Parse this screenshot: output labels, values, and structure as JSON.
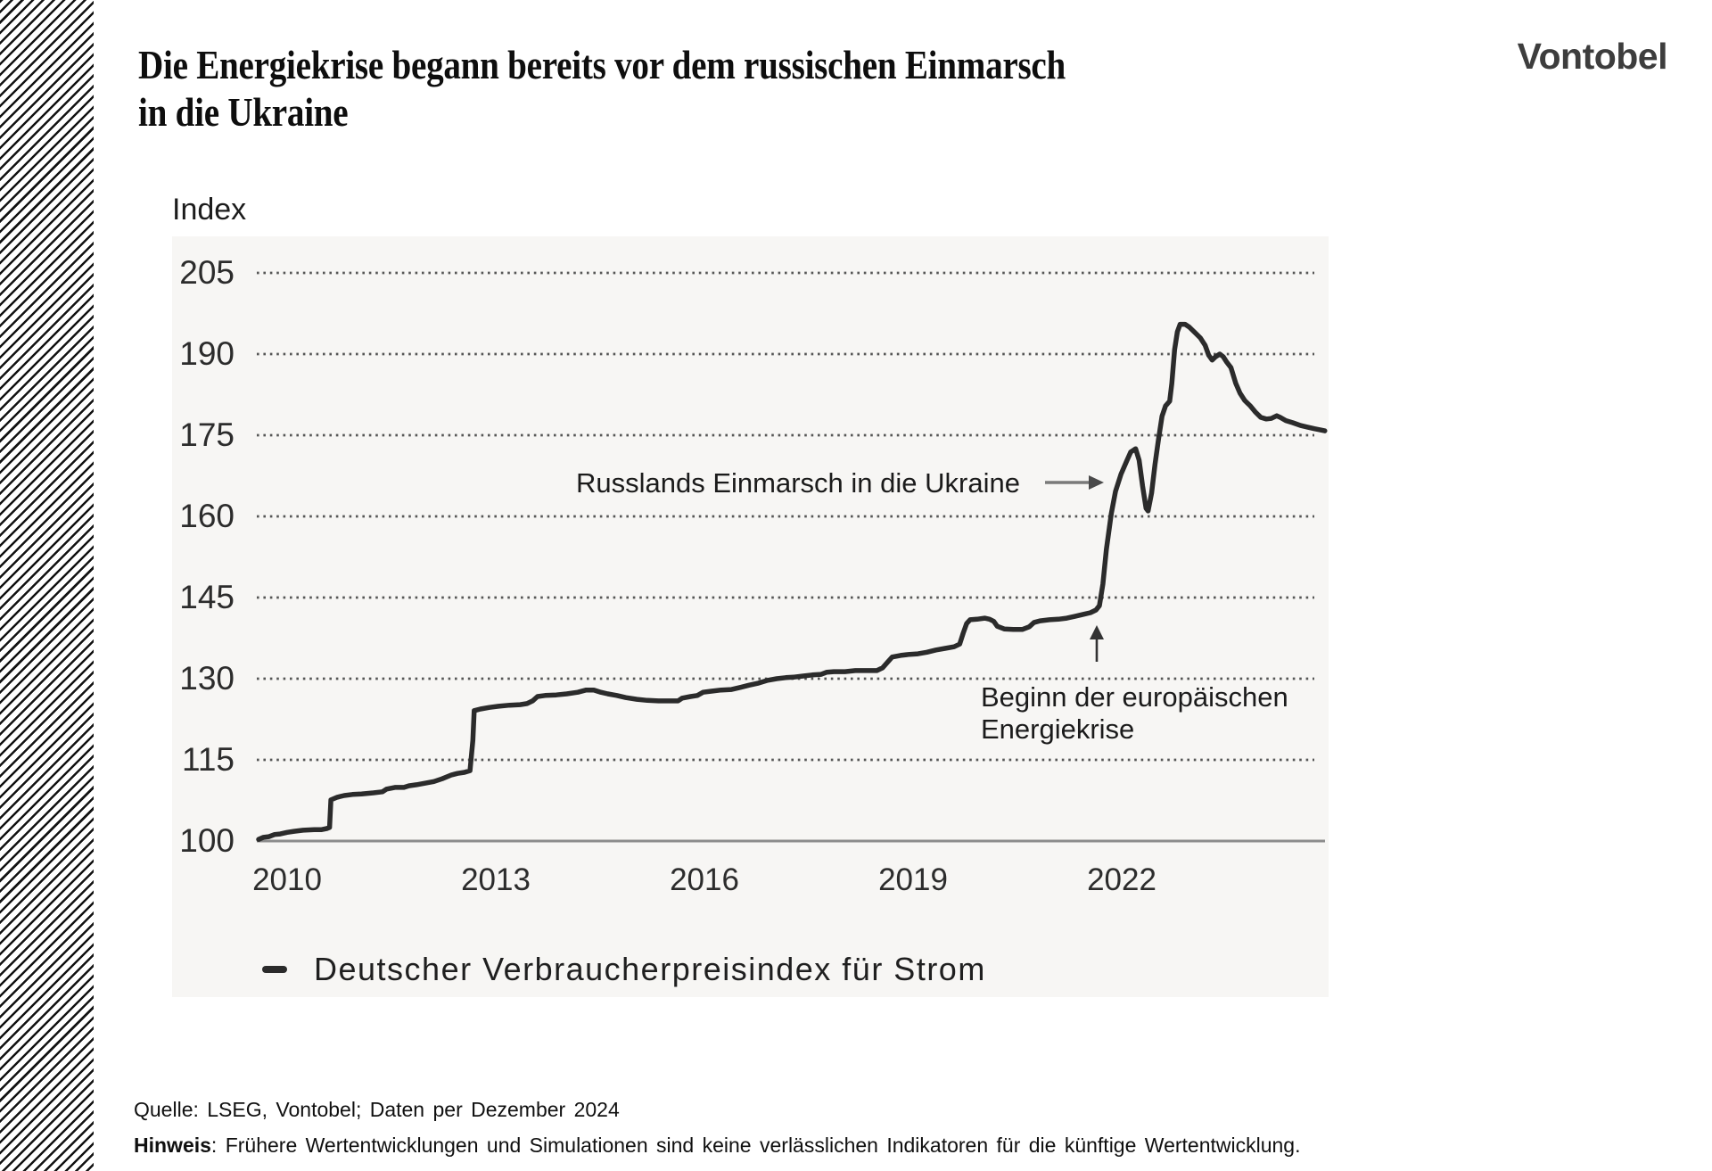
{
  "header": {
    "title_line1": "Die Energiekrise begann bereits vor dem russischen Einmarsch",
    "title_line2": "in die Ukraine",
    "brand": "Vontobel"
  },
  "chart_data": {
    "type": "line",
    "title": "Die Energiekrise begann bereits vor dem russischen Einmarsch in die Ukraine",
    "y_axis_label": "Index",
    "xlabel": "",
    "ylabel": "Index",
    "y_ticks": [
      205,
      190,
      175,
      160,
      145,
      130,
      115,
      100
    ],
    "x_ticks": [
      "2010",
      "2013",
      "2016",
      "2019",
      "2022"
    ],
    "ylim": [
      97,
      211
    ],
    "x_range_years": [
      2009.59,
      2024.92
    ],
    "grid": "dotted horizontal lines, solid baseline at 100",
    "legend_position": "bottom-left",
    "legend": [
      {
        "label": "Deutscher Verbraucherpreisindex für Strom",
        "color": "#2b2b2b"
      }
    ],
    "annotations": [
      {
        "id": "russlands",
        "text": "Russlands Einmarsch in die Ukraine",
        "arrow": "right-pointing",
        "points_at_year": 2022.1
      },
      {
        "id": "beginn",
        "text": "Beginn der europäischen Energiekrise",
        "line1": "Beginn der europäischen",
        "line2": "Energiekrise",
        "arrow": "up-pointing",
        "points_at_year": 2021.6
      }
    ],
    "series": [
      {
        "name": "Deutscher Verbraucherpreisindex für Strom",
        "color": "#2b2b2b",
        "points": [
          [
            2009.59,
            100.3
          ],
          [
            2009.66,
            100.7
          ],
          [
            2009.74,
            100.8
          ],
          [
            2009.82,
            101.2
          ],
          [
            2009.9,
            101.3
          ],
          [
            2010.0,
            101.6
          ],
          [
            2010.1,
            101.8
          ],
          [
            2010.23,
            102.0
          ],
          [
            2010.39,
            102.1
          ],
          [
            2010.49,
            102.1
          ],
          [
            2010.57,
            102.3
          ],
          [
            2010.61,
            102.5
          ],
          [
            2010.63,
            107.6
          ],
          [
            2010.72,
            108.1
          ],
          [
            2010.82,
            108.4
          ],
          [
            2010.94,
            108.6
          ],
          [
            2011.07,
            108.7
          ],
          [
            2011.24,
            108.9
          ],
          [
            2011.37,
            109.1
          ],
          [
            2011.43,
            109.6
          ],
          [
            2011.55,
            109.9
          ],
          [
            2011.68,
            109.9
          ],
          [
            2011.75,
            110.2
          ],
          [
            2011.86,
            110.4
          ],
          [
            2011.99,
            110.7
          ],
          [
            2012.11,
            111.0
          ],
          [
            2012.23,
            111.5
          ],
          [
            2012.36,
            112.2
          ],
          [
            2012.45,
            112.5
          ],
          [
            2012.55,
            112.7
          ],
          [
            2012.63,
            113.0
          ],
          [
            2012.67,
            118.6
          ],
          [
            2012.69,
            124.1
          ],
          [
            2012.78,
            124.4
          ],
          [
            2012.91,
            124.7
          ],
          [
            2013.04,
            124.9
          ],
          [
            2013.2,
            125.1
          ],
          [
            2013.35,
            125.2
          ],
          [
            2013.45,
            125.4
          ],
          [
            2013.53,
            125.9
          ],
          [
            2013.6,
            126.7
          ],
          [
            2013.71,
            126.9
          ],
          [
            2013.87,
            127.0
          ],
          [
            2014.02,
            127.2
          ],
          [
            2014.18,
            127.5
          ],
          [
            2014.3,
            127.9
          ],
          [
            2014.41,
            127.9
          ],
          [
            2014.51,
            127.5
          ],
          [
            2014.61,
            127.2
          ],
          [
            2014.74,
            126.9
          ],
          [
            2014.87,
            126.5
          ],
          [
            2015.03,
            126.2
          ],
          [
            2015.18,
            126.0
          ],
          [
            2015.34,
            125.9
          ],
          [
            2015.49,
            125.9
          ],
          [
            2015.62,
            125.9
          ],
          [
            2015.68,
            126.4
          ],
          [
            2015.8,
            126.7
          ],
          [
            2015.9,
            126.9
          ],
          [
            2015.98,
            127.5
          ],
          [
            2016.1,
            127.7
          ],
          [
            2016.24,
            127.9
          ],
          [
            2016.39,
            128.0
          ],
          [
            2016.52,
            128.4
          ],
          [
            2016.64,
            128.8
          ],
          [
            2016.78,
            129.2
          ],
          [
            2016.91,
            129.7
          ],
          [
            2017.04,
            130.0
          ],
          [
            2017.17,
            130.2
          ],
          [
            2017.29,
            130.3
          ],
          [
            2017.42,
            130.5
          ],
          [
            2017.55,
            130.7
          ],
          [
            2017.68,
            130.8
          ],
          [
            2017.76,
            131.2
          ],
          [
            2017.86,
            131.3
          ],
          [
            2018.02,
            131.3
          ],
          [
            2018.17,
            131.5
          ],
          [
            2018.33,
            131.5
          ],
          [
            2018.48,
            131.5
          ],
          [
            2018.56,
            132.0
          ],
          [
            2018.63,
            133.0
          ],
          [
            2018.7,
            134.0
          ],
          [
            2018.82,
            134.3
          ],
          [
            2018.95,
            134.5
          ],
          [
            2019.07,
            134.6
          ],
          [
            2019.2,
            134.9
          ],
          [
            2019.33,
            135.3
          ],
          [
            2019.46,
            135.6
          ],
          [
            2019.59,
            135.9
          ],
          [
            2019.67,
            136.4
          ],
          [
            2019.72,
            138.4
          ],
          [
            2019.77,
            140.2
          ],
          [
            2019.82,
            140.9
          ],
          [
            2019.92,
            141.0
          ],
          [
            2020.03,
            141.2
          ],
          [
            2020.1,
            141.0
          ],
          [
            2020.16,
            140.6
          ],
          [
            2020.21,
            139.7
          ],
          [
            2020.31,
            139.2
          ],
          [
            2020.44,
            139.1
          ],
          [
            2020.57,
            139.1
          ],
          [
            2020.67,
            139.6
          ],
          [
            2020.74,
            140.4
          ],
          [
            2020.83,
            140.7
          ],
          [
            2020.96,
            140.9
          ],
          [
            2021.09,
            141.0
          ],
          [
            2021.21,
            141.2
          ],
          [
            2021.32,
            141.5
          ],
          [
            2021.45,
            141.9
          ],
          [
            2021.55,
            142.2
          ],
          [
            2021.63,
            142.7
          ],
          [
            2021.68,
            143.5
          ],
          [
            2021.73,
            147.5
          ],
          [
            2021.78,
            153.9
          ],
          [
            2021.85,
            160.5
          ],
          [
            2021.91,
            164.6
          ],
          [
            2021.99,
            167.8
          ],
          [
            2022.07,
            170.2
          ],
          [
            2022.13,
            171.9
          ],
          [
            2022.2,
            172.5
          ],
          [
            2022.25,
            170.4
          ],
          [
            2022.3,
            165.6
          ],
          [
            2022.35,
            161.5
          ],
          [
            2022.38,
            161.0
          ],
          [
            2022.43,
            164.3
          ],
          [
            2022.48,
            169.7
          ],
          [
            2022.53,
            174.3
          ],
          [
            2022.58,
            178.5
          ],
          [
            2022.63,
            180.4
          ],
          [
            2022.69,
            181.3
          ],
          [
            2022.72,
            184.6
          ],
          [
            2022.76,
            190.8
          ],
          [
            2022.8,
            194.1
          ],
          [
            2022.84,
            195.5
          ],
          [
            2022.91,
            195.5
          ],
          [
            2022.97,
            195.0
          ],
          [
            2023.05,
            194.0
          ],
          [
            2023.13,
            193.0
          ],
          [
            2023.2,
            191.6
          ],
          [
            2023.25,
            189.8
          ],
          [
            2023.3,
            188.9
          ],
          [
            2023.35,
            189.5
          ],
          [
            2023.41,
            190.0
          ],
          [
            2023.46,
            189.5
          ],
          [
            2023.51,
            188.5
          ],
          [
            2023.57,
            187.5
          ],
          [
            2023.64,
            184.6
          ],
          [
            2023.7,
            182.8
          ],
          [
            2023.77,
            181.4
          ],
          [
            2023.85,
            180.4
          ],
          [
            2023.92,
            179.3
          ],
          [
            2024.0,
            178.3
          ],
          [
            2024.08,
            178.0
          ],
          [
            2024.15,
            178.1
          ],
          [
            2024.23,
            178.6
          ],
          [
            2024.28,
            178.3
          ],
          [
            2024.36,
            177.7
          ],
          [
            2024.46,
            177.3
          ],
          [
            2024.57,
            176.8
          ],
          [
            2024.67,
            176.5
          ],
          [
            2024.77,
            176.2
          ],
          [
            2024.85,
            176.0
          ],
          [
            2024.92,
            175.8
          ]
        ]
      }
    ]
  },
  "footer": {
    "quelle": "Quelle: LSEG, Vontobel; Daten per Dezember 2024",
    "hinweis_label": "Hinweis",
    "hinweis_rest": ": Frühere Wertentwicklungen und Simulationen sind keine verlässlichen Indikatoren für die künftige Wertentwicklung."
  },
  "colors": {
    "series_line": "#2b2b2b",
    "grid_dots": "#565656",
    "axis_line": "#8c8c8c",
    "panel": "#f7f6f4",
    "title_text": "#0e0e0e",
    "brand_text": "#3d3d3d",
    "hatch": "#121212"
  }
}
